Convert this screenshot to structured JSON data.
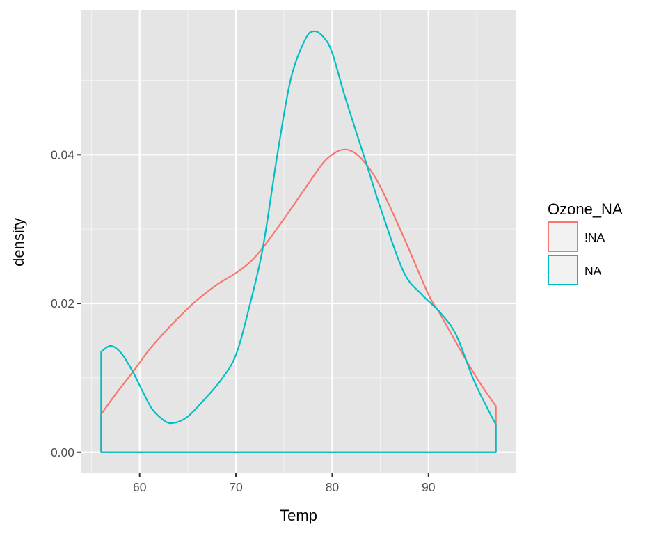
{
  "chart_data": {
    "type": "line",
    "subtype": "density",
    "title": "",
    "xlabel": "Temp",
    "ylabel": "density",
    "xlim": [
      53.95,
      99.05
    ],
    "ylim": [
      -0.00283,
      0.0594
    ],
    "xticks": [
      60,
      70,
      80,
      90
    ],
    "yticks": [
      "0.00",
      "0.02",
      "0.04"
    ],
    "ytick_values": [
      0,
      0.02,
      0.04
    ],
    "grid": true,
    "background": "#e5e5e5",
    "legend": {
      "title": "Ozone_NA",
      "position": "right"
    },
    "series": [
      {
        "name": "!NA",
        "color": "#f8766d",
        "x": [
          56,
          57.5,
          59.3,
          61,
          63,
          64.9,
          66.1,
          68,
          70,
          71.5,
          72.8,
          75,
          77.2,
          79,
          80.2,
          81.3,
          82.4,
          83.6,
          85,
          87.4,
          90,
          91.2,
          93.9,
          95.5,
          97
        ],
        "y": [
          0.0051,
          0.0078,
          0.0108,
          0.0138,
          0.0167,
          0.0192,
          0.0206,
          0.0225,
          0.0241,
          0.0256,
          0.0275,
          0.0314,
          0.0355,
          0.0388,
          0.0402,
          0.0407,
          0.0402,
          0.0386,
          0.0357,
          0.029,
          0.0212,
          0.0186,
          0.0124,
          0.009,
          0.0062
        ]
      },
      {
        "name": "NA",
        "color": "#00bfc4",
        "x": [
          56,
          57,
          58.1,
          59.3,
          60.3,
          61.25,
          62.3,
          63.3,
          64.9,
          66.8,
          68.5,
          70,
          71.4,
          72.8,
          74.3,
          75.7,
          77.2,
          78.1,
          79.1,
          80,
          81.4,
          83.6,
          85,
          87.4,
          89.3,
          91.2,
          92.9,
          94.8,
          97
        ],
        "y": [
          0.0135,
          0.0143,
          0.0133,
          0.0108,
          0.0082,
          0.0059,
          0.0045,
          0.0039,
          0.0047,
          0.0072,
          0.0098,
          0.0131,
          0.0196,
          0.0275,
          0.04,
          0.0502,
          0.0555,
          0.0566,
          0.0558,
          0.0537,
          0.0475,
          0.0386,
          0.0329,
          0.0243,
          0.0212,
          0.0188,
          0.0157,
          0.0094,
          0.0037
        ]
      }
    ]
  }
}
